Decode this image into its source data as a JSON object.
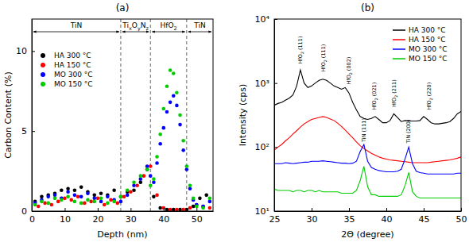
{
  "chart_data": [
    {
      "type": "scatter",
      "title": "(a)",
      "x_label": "Depth (nm)",
      "y_label": "Carbon Content (%)",
      "xlim": [
        0,
        55
      ],
      "xticks": [
        0,
        10,
        20,
        30,
        40,
        50
      ],
      "ylim": [
        0,
        12
      ],
      "yticks": [
        0,
        5,
        10
      ],
      "grid": false,
      "legend": "upper left",
      "marker": "circle",
      "regions": [
        {
          "label": "TiN",
          "start": 0,
          "end": 27
        },
        {
          "label": "TixOyNz",
          "start": 27,
          "end": 36
        },
        {
          "label": "HfO2",
          "start": 36,
          "end": 47
        },
        {
          "label": "TiN",
          "start": 47,
          "end": 55
        }
      ],
      "series": [
        {
          "name": "HA 300 °C",
          "color": "#000000",
          "x": [
            1,
            3,
            5,
            7,
            9,
            11,
            13,
            15,
            17,
            19,
            21,
            23,
            25,
            27,
            29,
            31,
            33,
            35,
            37,
            39,
            41,
            43,
            45,
            47,
            49,
            51,
            53
          ],
          "values": [
            0.6,
            0.9,
            1.0,
            1.1,
            1.3,
            1.4,
            1.3,
            1.5,
            1.2,
            1.0,
            1.1,
            1.0,
            1.3,
            0.9,
            1.2,
            1.3,
            1.8,
            2.6,
            0.9,
            0.2,
            0.1,
            0.1,
            0.1,
            0.1,
            0.3,
            0.8,
            1.0
          ]
        },
        {
          "name": "HA 150 °C",
          "color": "#ff0000",
          "x": [
            2,
            4,
            6,
            8,
            10,
            12,
            14,
            16,
            18,
            20,
            22,
            24,
            26,
            28,
            30,
            32,
            34,
            36,
            38,
            40,
            42,
            44,
            46,
            48,
            50,
            52,
            54
          ],
          "values": [
            0.3,
            0.5,
            0.4,
            0.6,
            0.8,
            0.7,
            0.9,
            0.5,
            0.6,
            0.8,
            0.4,
            0.7,
            0.5,
            0.9,
            1.2,
            1.6,
            2.2,
            2.8,
            1.0,
            0.2,
            0.1,
            0.1,
            0.1,
            0.2,
            0.4,
            0.3,
            0.2
          ]
        },
        {
          "name": "MO 300 °C",
          "color": "#0000ff",
          "x": [
            1,
            3,
            5,
            7,
            9,
            11,
            13,
            15,
            17,
            19,
            21,
            23,
            25,
            27,
            29,
            31,
            33,
            35,
            36,
            37,
            38,
            39,
            40,
            41,
            42,
            43,
            44,
            45,
            46,
            47,
            48,
            49,
            50,
            52,
            54
          ],
          "values": [
            0.5,
            0.7,
            0.9,
            1.0,
            0.8,
            1.2,
            1.0,
            0.9,
            1.1,
            0.8,
            0.6,
            0.9,
            0.7,
            0.6,
            1.0,
            1.6,
            2.0,
            2.8,
            2.2,
            1.8,
            3.0,
            4.2,
            5.2,
            6.2,
            6.8,
            7.2,
            6.6,
            5.4,
            3.8,
            2.6,
            1.4,
            0.7,
            0.4,
            0.3,
            0.6
          ]
        },
        {
          "name": "MO 150 °C",
          "color": "#00cc00",
          "x": [
            1,
            3,
            5,
            7,
            9,
            11,
            13,
            15,
            17,
            19,
            21,
            23,
            25,
            27,
            29,
            31,
            33,
            35,
            36,
            37,
            38,
            39,
            40,
            41,
            42,
            43,
            44,
            45,
            46,
            47,
            48,
            49,
            50,
            52,
            54
          ],
          "values": [
            0.4,
            0.6,
            0.5,
            0.8,
            0.7,
            0.9,
            0.6,
            0.5,
            0.7,
            0.6,
            0.8,
            0.5,
            0.6,
            0.9,
            1.3,
            1.8,
            2.2,
            2.6,
            1.6,
            2.0,
            3.4,
            4.8,
            6.4,
            7.8,
            8.8,
            8.6,
            7.4,
            6.0,
            4.4,
            2.8,
            1.6,
            0.8,
            0.3,
            0.2,
            0.8
          ]
        }
      ]
    },
    {
      "type": "line",
      "title": "(b)",
      "x_label": "2Θ (degree)",
      "y_label": "Intensity (cps)",
      "log": "y",
      "xlim": [
        25,
        50
      ],
      "xticks": [
        25,
        30,
        35,
        40,
        45,
        50
      ],
      "ylim": [
        10,
        10000
      ],
      "yticks": [
        {
          "value": 10,
          "label": "10¹"
        },
        {
          "value": 100,
          "label": "10²"
        },
        {
          "value": 1000,
          "label": "10³"
        },
        {
          "value": 10000,
          "label": "10⁴"
        }
      ],
      "grid": false,
      "legend": "upper right",
      "line_style": "solid",
      "x": [
        25,
        25.5,
        26,
        26.5,
        27,
        27.5,
        28,
        28.5,
        29,
        29.5,
        30,
        30.5,
        31,
        31.5,
        32,
        32.5,
        33,
        33.5,
        34,
        34.5,
        35,
        35.5,
        36,
        36.5,
        37,
        37.5,
        38,
        38.5,
        39,
        39.5,
        40,
        40.5,
        41,
        41.5,
        42,
        42.5,
        43,
        43.5,
        44,
        44.5,
        45,
        45.5,
        46,
        46.5,
        47,
        47.5,
        48,
        48.5,
        49,
        49.5,
        50
      ],
      "annotations": [
        {
          "text": "HfO2 (111)",
          "x": 28.5,
          "y": 2000
        },
        {
          "text": "HfO2 (111)",
          "x": 31.6,
          "y": 1500
        },
        {
          "text": "HfO2 (002)",
          "x": 35,
          "y": 950
        },
        {
          "text": "TiN (111)",
          "x": 37,
          "y": 120
        },
        {
          "text": "HfO2 (021)",
          "x": 38.4,
          "y": 380
        },
        {
          "text": "HfO2 (211)",
          "x": 41,
          "y": 420
        },
        {
          "text": "TiN (200)",
          "x": 43,
          "y": 115
        },
        {
          "text": "HfO2 (220)",
          "x": 45.7,
          "y": 380
        }
      ],
      "series": [
        {
          "name": "HA 300 °C",
          "color": "#000000",
          "values": [
            450,
            480,
            500,
            540,
            580,
            650,
            900,
            1600,
            1000,
            850,
            900,
            1000,
            1100,
            1150,
            1100,
            1000,
            900,
            850,
            800,
            850,
            700,
            500,
            380,
            300,
            280,
            270,
            280,
            300,
            270,
            240,
            240,
            260,
            330,
            290,
            250,
            260,
            255,
            255,
            255,
            260,
            300,
            270,
            240,
            230,
            230,
            235,
            240,
            250,
            280,
            330,
            360
          ]
        },
        {
          "name": "HA 150 °C",
          "color": "#ff0000",
          "values": [
            90,
            100,
            110,
            125,
            140,
            160,
            180,
            205,
            230,
            250,
            270,
            280,
            290,
            300,
            290,
            275,
            260,
            235,
            210,
            185,
            160,
            140,
            120,
            105,
            95,
            87,
            80,
            75,
            70,
            67,
            65,
            63,
            62,
            61,
            60,
            59,
            58,
            57,
            57,
            57,
            57,
            57,
            58,
            59,
            60,
            61,
            62,
            63,
            65,
            67,
            70
          ]
        },
        {
          "name": "MO 300 °C",
          "color": "#0000ff",
          "values": [
            55,
            55,
            55,
            57,
            56,
            55,
            56,
            57,
            58,
            58,
            60,
            60,
            60,
            61,
            60,
            59,
            58,
            57,
            56,
            56,
            55,
            56,
            60,
            85,
            110,
            60,
            48,
            45,
            43,
            42,
            41,
            41,
            41,
            42,
            45,
            65,
            100,
            55,
            42,
            40,
            39,
            38,
            38,
            38,
            38,
            38,
            38,
            38,
            38,
            39,
            39
          ]
        },
        {
          "name": "MO 150 °C",
          "color": "#00cc00",
          "values": [
            22,
            21,
            21,
            21,
            21,
            20,
            21,
            21,
            20,
            21,
            21,
            20,
            21,
            20,
            20,
            20,
            20,
            20,
            19,
            19,
            19,
            19,
            21,
            30,
            50,
            24,
            18,
            18,
            17,
            17,
            17,
            17,
            17,
            17,
            18,
            25,
            40,
            20,
            17,
            16,
            16,
            16,
            16,
            16,
            16,
            16,
            16,
            16,
            16,
            16,
            16
          ]
        }
      ]
    }
  ]
}
